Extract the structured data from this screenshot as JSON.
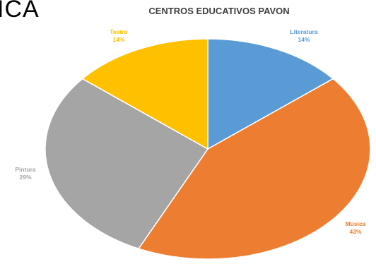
{
  "heading_fragment": "ICA",
  "chart_data": {
    "type": "pie",
    "title": "CENTROS EDUCATIVOS PAVON",
    "slices": [
      {
        "name": "Literatura",
        "value": 14,
        "label": "14%",
        "color": "#5b9bd5"
      },
      {
        "name": "Música",
        "value": 43,
        "label": "43%",
        "color": "#ed7d31"
      },
      {
        "name": "Pintura",
        "value": 29,
        "label": "29%",
        "color": "#a5a5a5"
      },
      {
        "name": "Teatro",
        "value": 14,
        "label": "14%",
        "color": "#ffc000"
      }
    ],
    "legend": "none"
  }
}
